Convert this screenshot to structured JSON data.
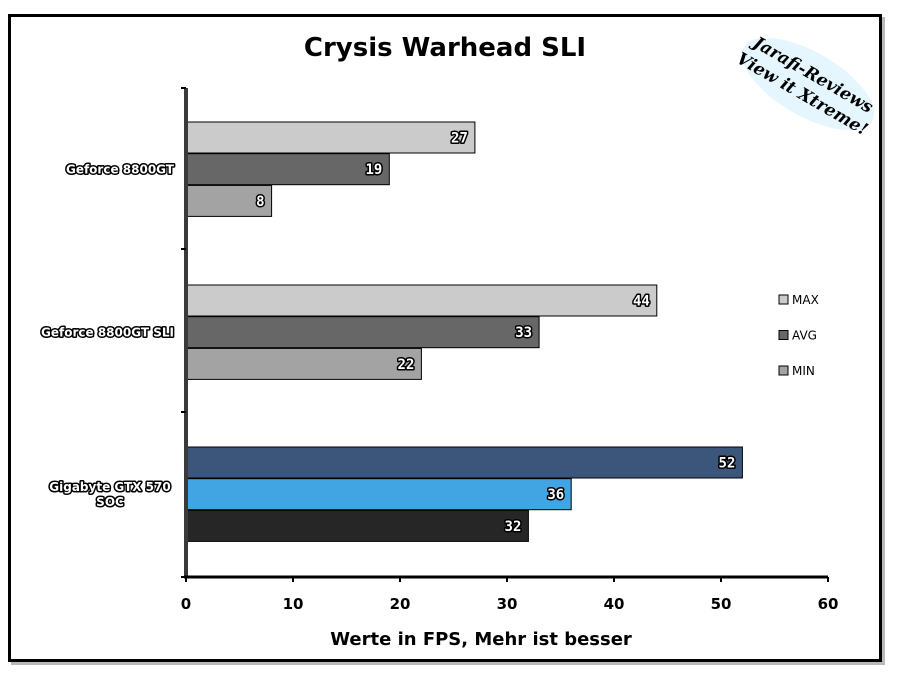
{
  "colors": {
    "max": "#cbcbcb",
    "avg": "#676767",
    "min": "#a3a3a3",
    "highlight_max": "#3c567b",
    "highlight_avg": "#41a5e3",
    "highlight_min": "#262626"
  },
  "watermark": {
    "line1": "Jarafi-Reviews",
    "line2": "View it Xtreme!"
  },
  "chart_data": {
    "type": "bar",
    "orientation": "horizontal",
    "title": "Crysis Warhead SLI",
    "xlabel": "Werte in FPS, Mehr ist besser",
    "ylabel": "",
    "xlim": [
      0,
      60
    ],
    "xticks": [
      "0",
      "10",
      "20",
      "30",
      "40",
      "50",
      "60"
    ],
    "grid": false,
    "legend_position": "right",
    "categories": [
      "Geforce 8800GT",
      "Geforce 8800GT SLI",
      "Gigabyte GTX 570 SOC"
    ],
    "series": [
      {
        "name": "MAX",
        "values": [
          27,
          44,
          52
        ]
      },
      {
        "name": "AVG",
        "values": [
          19,
          33,
          36
        ]
      },
      {
        "name": "MIN",
        "values": [
          8,
          22,
          32
        ]
      }
    ]
  }
}
